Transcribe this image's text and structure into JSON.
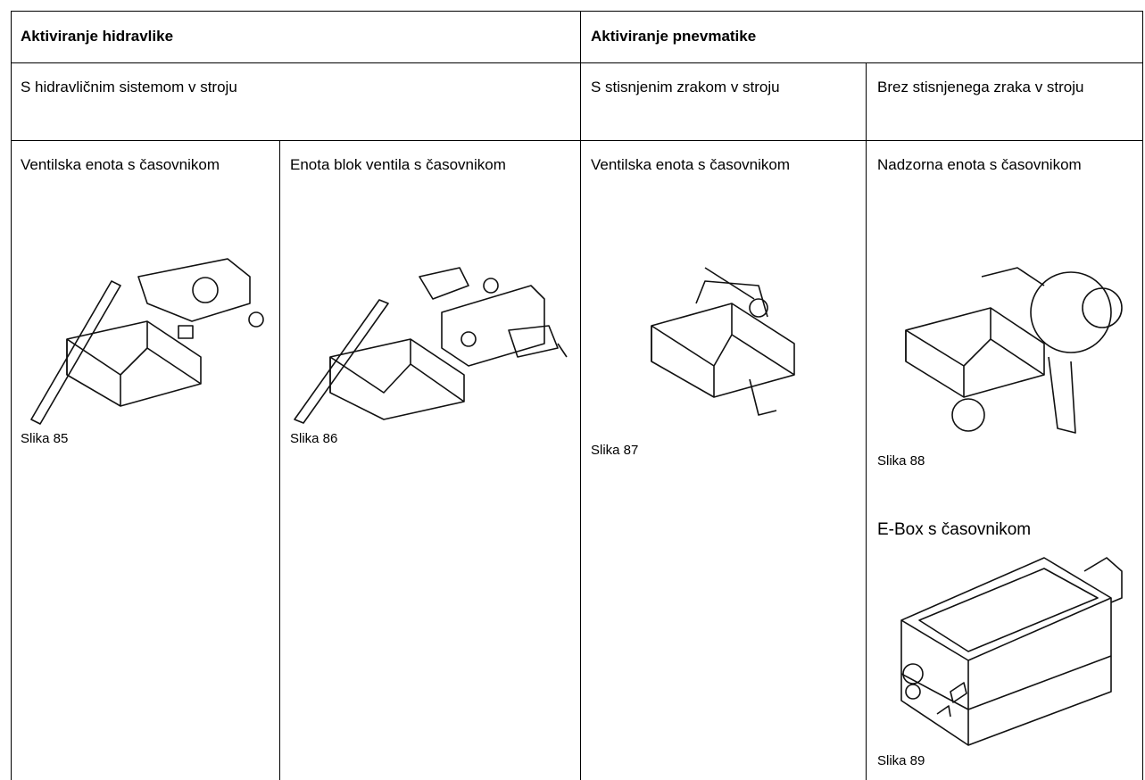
{
  "table": {
    "header": [
      "Aktiviranje hidravlike",
      "Aktiviranje pnevmatike"
    ],
    "subheader": [
      "S hidravličnim sistemom v stroju",
      "S stisnjenim zrakom v stroju",
      "Brez stisnjenega zraka v stroju"
    ],
    "units": [
      {
        "title": "Ventilska enota s časovnikom",
        "caption": "Slika 85"
      },
      {
        "title": "Enota blok ventila s časovnikom",
        "caption": "Slika 86"
      },
      {
        "title": "Ventilska enota s časovnikom",
        "caption": "Slika 87"
      },
      {
        "title": "Nadzorna enota s časovnikom",
        "caption": "Slika 88"
      },
      {
        "title": "E-Box s časovnikom",
        "caption": "Slika 89"
      }
    ]
  }
}
